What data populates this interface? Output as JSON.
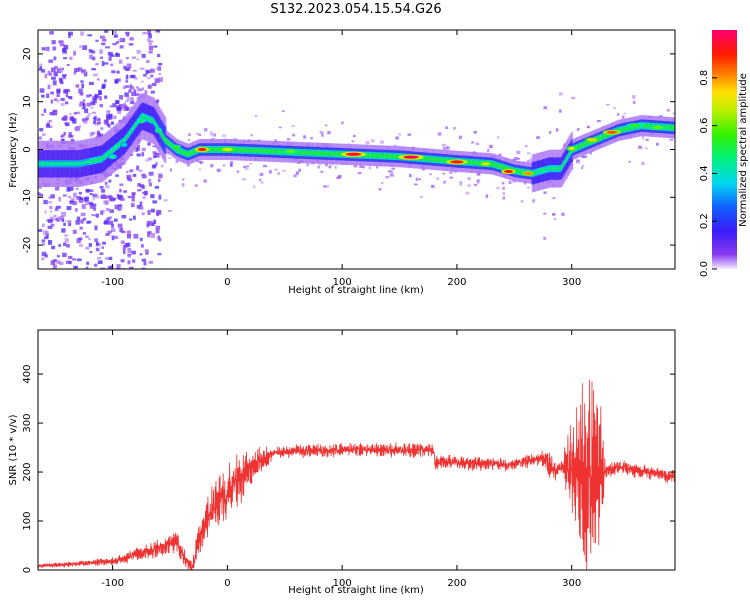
{
  "title": "S132.2023.054.15.54.G26",
  "chart_data": [
    {
      "type": "heatmap",
      "xlabel": "Height of straight line (km)",
      "ylabel": "Frequency (Hz)",
      "xlim": [
        -165,
        390
      ],
      "ylim": [
        -25,
        25
      ],
      "xticks": [
        -100,
        0,
        100,
        200,
        300
      ],
      "yticks": [
        -20,
        -10,
        0,
        10,
        20
      ],
      "colorbar": {
        "label": "Normalized spectral amplitude",
        "range": [
          0,
          1
        ],
        "ticks": [
          "0.0",
          "0.2",
          "0.4",
          "0.6",
          "0.8"
        ]
      },
      "ridge": {
        "x": [
          -130,
          -110,
          -90,
          -75,
          -65,
          -55,
          -45,
          -35,
          -25,
          -15,
          0,
          50,
          100,
          150,
          200,
          230,
          250,
          265,
          280,
          290,
          300,
          320,
          340,
          360,
          390
        ],
        "y": [
          -3,
          -2,
          2,
          7,
          6,
          2,
          0,
          -1,
          0,
          0,
          0,
          -0.5,
          -1,
          -1.5,
          -2.5,
          -3,
          -4.5,
          -5,
          -4,
          -4,
          0,
          2,
          4,
          5,
          4.5
        ]
      }
    },
    {
      "type": "line",
      "xlabel": "Height of straight line (km)",
      "ylabel": "SNR (10 * v/v)",
      "xlim": [
        -165,
        390
      ],
      "ylim": [
        0,
        490
      ],
      "xticks": [
        -100,
        0,
        100,
        200,
        300
      ],
      "yticks": [
        0,
        100,
        200,
        300,
        400
      ],
      "color": "#ef3333",
      "baseline": {
        "x": [
          -165,
          -100,
          -60,
          -45,
          -31,
          -20,
          0,
          20,
          40,
          100,
          180,
          181,
          250,
          275,
          285,
          300,
          320,
          340,
          390
        ],
        "y": [
          8,
          18,
          45,
          60,
          0,
          100,
          160,
          210,
          240,
          245,
          245,
          220,
          215,
          230,
          205,
          210,
          200,
          210,
          190
        ]
      },
      "noise": {
        "x": [
          -165,
          -100,
          -50,
          -30,
          -25,
          0,
          20,
          40,
          180,
          270,
          280,
          290,
          310,
          320,
          330,
          390
        ],
        "amp": [
          3,
          8,
          20,
          15,
          40,
          55,
          40,
          12,
          14,
          12,
          30,
          10,
          170,
          200,
          15,
          12
        ]
      }
    }
  ]
}
